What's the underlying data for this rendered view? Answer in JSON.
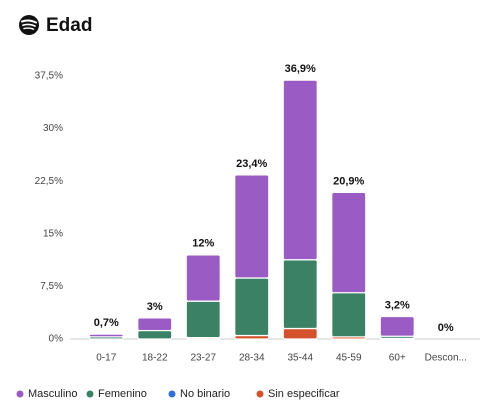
{
  "chart_data": {
    "type": "stacked-bar",
    "title": "Edad",
    "categories": [
      "0-17",
      "18-22",
      "23-27",
      "28-34",
      "35-44",
      "45-59",
      "60+",
      "Descon..."
    ],
    "series": [
      {
        "name": "Masculino",
        "color": "#9b5bc4",
        "values": [
          0.4,
          1.8,
          6.6,
          14.7,
          25.6,
          14.3,
          2.8,
          0
        ]
      },
      {
        "name": "Femenino",
        "color": "#3a8166",
        "values": [
          0.3,
          1.2,
          5.2,
          8.2,
          9.8,
          6.3,
          0.3,
          0
        ]
      },
      {
        "name": "No binario",
        "color": "#2f6fd6",
        "values": [
          0,
          0,
          0,
          0,
          0,
          0,
          0,
          0
        ]
      },
      {
        "name": "Sin especificar",
        "color": "#d4522b",
        "values": [
          0,
          0,
          0.2,
          0.5,
          1.5,
          0.3,
          0.1,
          0
        ]
      }
    ],
    "totals": [
      0.7,
      3,
      12,
      23.4,
      36.9,
      20.9,
      3.2,
      0
    ],
    "total_labels": [
      "0,7%",
      "3%",
      "12%",
      "23,4%",
      "36,9%",
      "20,9%",
      "3,2%",
      "0%"
    ],
    "ylim": [
      0,
      37.5
    ],
    "yticks": [
      {
        "value": 0,
        "label": "0%"
      },
      {
        "value": 7.5,
        "label": "7,5%"
      },
      {
        "value": 15,
        "label": "15%"
      },
      {
        "value": 22.5,
        "label": "22,5%"
      },
      {
        "value": 30,
        "label": "30%"
      },
      {
        "value": 37.5,
        "label": "37,5%"
      }
    ],
    "stack_order": [
      "Sin especificar",
      "No binario",
      "Femenino",
      "Masculino"
    ]
  }
}
